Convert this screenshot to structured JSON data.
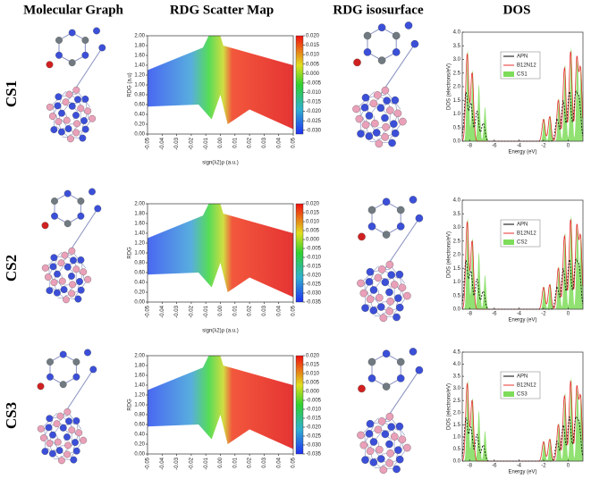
{
  "headers": [
    "Molecular Graph",
    "RDG Scatter Map",
    "RDG isosurface",
    "DOS"
  ],
  "rdg": {
    "xlim": [
      -0.05,
      0.05
    ],
    "ylim": [
      0,
      2
    ],
    "xticks": [
      -0.05,
      -0.04,
      -0.03,
      -0.02,
      -0.01,
      {
        "value": 0,
        "label": "0.00"
      },
      0.01,
      0.02,
      0.03,
      0.04,
      0.05
    ],
    "yticks": [
      {
        "value": 0,
        "label": "0.00"
      },
      {
        "value": 0.2,
        "label": "0.20"
      },
      {
        "value": 0.4,
        "label": "0.40"
      },
      {
        "value": 0.6,
        "label": "0.60"
      },
      {
        "value": 0.8,
        "label": "0.80"
      },
      {
        "value": 1,
        "label": "1.00"
      },
      {
        "value": 1.2,
        "label": "1.20"
      },
      {
        "value": 1.4,
        "label": "1.40"
      },
      {
        "value": 1.6,
        "label": "1.60"
      },
      {
        "value": 1.8,
        "label": "1.80"
      },
      {
        "value": 2,
        "label": "2.00"
      }
    ],
    "xlabel": "sign(λ2)ρ (a.u.)"
  },
  "rows": [
    {
      "label": "CS1",
      "rdg": {
        "ylabel": "RDG (a.u)",
        "clim": [
          -0.032,
          0.02
        ],
        "cticks": [
          {
            "value": 0.02,
            "label": "0.020"
          },
          0.015,
          {
            "value": 0.01,
            "label": "0.010"
          },
          0.005,
          {
            "value": 0,
            "label": "0.000"
          },
          -0.005,
          {
            "value": -0.01,
            "label": "-0.010"
          },
          -0.015,
          {
            "value": -0.02,
            "label": "-0.020"
          },
          -0.025,
          {
            "value": -0.03,
            "label": "-0.030"
          }
        ]
      },
      "dos": {
        "ylabel": "DOS (electrons/eV)",
        "xlabel": "Energy (eV)",
        "xlim": [
          -8.6,
          1.2
        ],
        "ylim": [
          0,
          4
        ],
        "xticks": [
          -8,
          -6,
          -4,
          -2,
          0
        ],
        "yticks": [
          {
            "value": 0,
            "label": "0.0"
          },
          0.5,
          {
            "value": 1,
            "label": "1.0"
          },
          1.5,
          {
            "value": 2,
            "label": "2.0"
          },
          2.5,
          {
            "value": 3,
            "label": "3.0"
          },
          3.5,
          {
            "value": 4,
            "label": "4.0"
          }
        ],
        "legend": [
          {
            "name": "APN",
            "color": "#000000"
          },
          {
            "name": "B12N12",
            "color": "#e8312f"
          },
          {
            "name": "CS1",
            "color": "#7fdc5a"
          }
        ]
      }
    },
    {
      "label": "CS2",
      "rdg": {
        "ylabel": "RDG",
        "clim": [
          -0.035,
          0.02
        ],
        "cticks": [
          {
            "value": 0.02,
            "label": "0.020"
          },
          0.015,
          {
            "value": 0.01,
            "label": "0.010"
          },
          0.005,
          {
            "value": 0,
            "label": "0.000"
          },
          -0.005,
          {
            "value": -0.01,
            "label": "-0.010"
          },
          -0.015,
          {
            "value": -0.02,
            "label": "-0.020"
          },
          -0.025,
          {
            "value": -0.03,
            "label": "-0.030"
          },
          -0.035
        ]
      },
      "dos": {
        "ylabel": "DOS (electrons/eV)",
        "xlabel": "Energy (eV)",
        "xlim": [
          -8.6,
          1.2
        ],
        "ylim": [
          0,
          4
        ],
        "xticks": [
          -8,
          -6,
          -4,
          -2,
          0
        ],
        "yticks": [
          {
            "value": 0,
            "label": "0.0"
          },
          0.5,
          {
            "value": 1,
            "label": "1.0"
          },
          1.5,
          {
            "value": 2,
            "label": "2.0"
          },
          2.5,
          {
            "value": 3,
            "label": "3.0"
          },
          3.5,
          {
            "value": 4,
            "label": "4.0"
          }
        ],
        "legend": [
          {
            "name": "APN",
            "color": "#000000"
          },
          {
            "name": "B12N12",
            "color": "#e8312f"
          },
          {
            "name": "CS2",
            "color": "#7fdc5a"
          }
        ]
      }
    },
    {
      "label": "CS3",
      "rdg": {
        "ylabel": "RDG",
        "clim": [
          -0.035,
          0.02
        ],
        "cticks": [
          {
            "value": 0.02,
            "label": "0.020"
          },
          0.015,
          {
            "value": 0.01,
            "label": "0.010"
          },
          0.005,
          {
            "value": 0,
            "label": "0.000"
          },
          -0.005,
          {
            "value": -0.01,
            "label": "-0.010"
          },
          -0.015,
          {
            "value": -0.02,
            "label": "-0.020"
          },
          -0.025,
          {
            "value": -0.03,
            "label": "-0.030"
          },
          -0.035
        ]
      },
      "dos": {
        "ylabel": "DOS (electrons/eV)",
        "xlabel": "Energy (eV)",
        "xlim": [
          -8.6,
          1.2
        ],
        "ylim": [
          0,
          4.5
        ],
        "xticks": [
          -8,
          -6,
          -4,
          -2,
          0
        ],
        "yticks": [
          {
            "value": 0,
            "label": "0.0"
          },
          0.5,
          {
            "value": 1,
            "label": "1.0"
          },
          1.5,
          {
            "value": 2,
            "label": "2.0"
          },
          2.5,
          {
            "value": 3,
            "label": "3.0"
          },
          3.5,
          {
            "value": 4,
            "label": "4.0"
          },
          4.5
        ],
        "legend": [
          {
            "name": "APN",
            "color": "#000000"
          },
          {
            "name": "B12N12",
            "color": "#e8312f"
          },
          {
            "name": "CS3",
            "color": "#7fdc5a"
          }
        ]
      }
    }
  ]
}
